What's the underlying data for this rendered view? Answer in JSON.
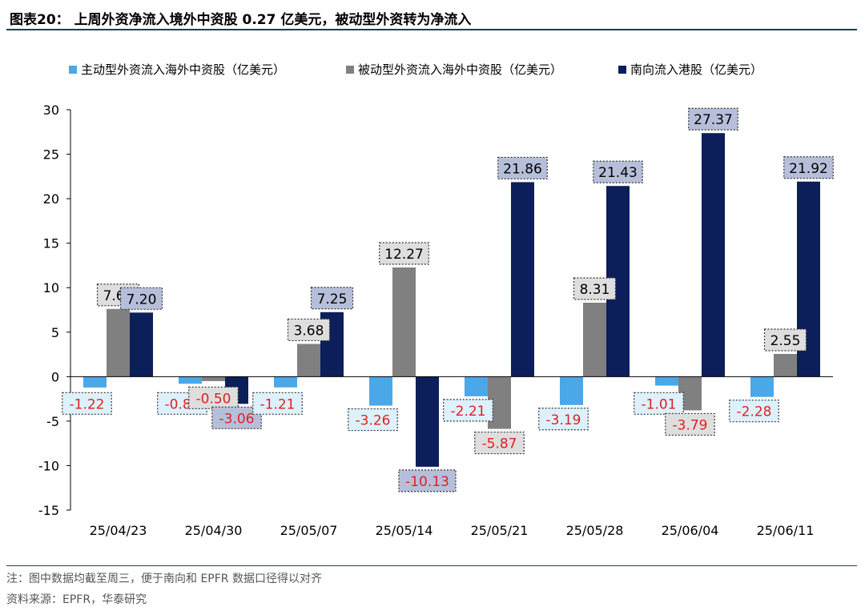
{
  "header": {
    "title": "图表20：  上周外资净流入境外中资股 0.27 亿美元，被动型外资转为净流入"
  },
  "footer": {
    "note": "注：图中数据均截至周三，便于南向和 EPFR 数据口径得以对齐",
    "source": "资料来源：EPFR，华泰研究"
  },
  "chart_data": {
    "type": "bar",
    "categories": [
      "25/04/23",
      "25/04/30",
      "25/05/07",
      "25/05/14",
      "25/05/21",
      "25/05/28",
      "25/06/04",
      "25/06/11"
    ],
    "series": [
      {
        "name": "主动型外资流入海外中资股（亿美元）",
        "color": "#4aa8e8",
        "label_bg": "#ddf1fd",
        "values": [
          -1.22,
          -0.8,
          -1.21,
          -3.26,
          -2.21,
          -3.19,
          -1.01,
          -2.28
        ]
      },
      {
        "name": "被动型外资流入海外中资股（亿美元）",
        "color": "#808080",
        "label_bg": "#dedede",
        "values": [
          7.61,
          -0.5,
          3.68,
          12.27,
          -5.87,
          8.31,
          -3.79,
          2.55
        ]
      },
      {
        "name": "南向流入港股（亿美元）",
        "color": "#0c1f5a",
        "label_bg": "#b6bfd9",
        "values": [
          7.2,
          -3.06,
          7.25,
          -10.13,
          21.86,
          21.43,
          27.37,
          21.92
        ]
      }
    ],
    "yticks": [
      "30",
      "25",
      "20",
      "15",
      "10",
      "5",
      "0",
      "-5",
      "-10",
      "-15"
    ],
    "ylim": [
      -15,
      30
    ],
    "legend_position": "top",
    "grid": false,
    "positive_label_color": "#000000",
    "negative_label_color": "#e02020"
  }
}
